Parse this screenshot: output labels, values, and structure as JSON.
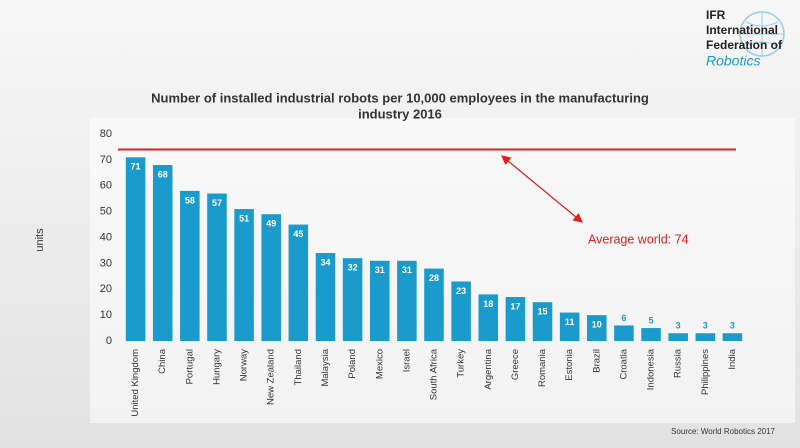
{
  "logo": {
    "line1": "IFR",
    "line2": "International",
    "line3": "Federation of",
    "line4": "Robotics"
  },
  "chart_data": {
    "type": "bar",
    "title": "Number of installed industrial robots per 10,000 employees in the manufacturing",
    "subtitle": "industry 2016",
    "y_label": "units",
    "categories": [
      "United Kingdom",
      "China",
      "Portugal",
      "Hungary",
      "Norway",
      "New Zealand",
      "Thailand",
      "Malaysia",
      "Poland",
      "Mexico",
      "Israel",
      "South Africa",
      "Turkey",
      "Argentina",
      "Greece",
      "Romania",
      "Estonia",
      "Brazil",
      "Croatia",
      "Indonesia",
      "Russia",
      "Philippines",
      "India"
    ],
    "values": [
      71,
      68,
      58,
      57,
      51,
      49,
      45,
      34,
      32,
      31,
      31,
      28,
      23,
      18,
      17,
      15,
      11,
      10,
      6,
      5,
      3,
      3,
      3
    ],
    "color": "#1a9bcb",
    "ylim": [
      0,
      80
    ],
    "yticks": [
      0,
      10,
      20,
      30,
      40,
      50,
      60,
      70,
      80
    ],
    "grid": false,
    "average": {
      "label": "Average world: 74",
      "value": 74,
      "color": "#e02020"
    },
    "source": "Source: World Robotics 2017"
  }
}
